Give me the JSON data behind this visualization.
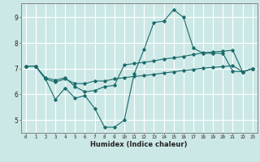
{
  "xlabel": "Humidex (Indice chaleur)",
  "background_color": "#cce8e6",
  "grid_color": "#ffffff",
  "line_color": "#1a6b6b",
  "xlim": [
    -0.5,
    23.5
  ],
  "ylim": [
    4.5,
    9.55
  ],
  "yticks": [
    5,
    6,
    7,
    8,
    9
  ],
  "xticks": [
    0,
    1,
    2,
    3,
    4,
    5,
    6,
    7,
    8,
    9,
    10,
    11,
    12,
    13,
    14,
    15,
    16,
    17,
    18,
    19,
    20,
    21,
    22,
    23
  ],
  "line1_x": [
    0,
    1,
    2,
    3,
    4,
    5,
    6,
    7,
    8,
    9,
    10,
    11,
    12,
    13,
    14,
    15,
    16,
    17,
    18,
    19,
    20,
    21,
    22,
    23
  ],
  "line1_y": [
    7.1,
    7.1,
    6.6,
    5.8,
    6.25,
    5.85,
    5.95,
    5.45,
    4.72,
    4.72,
    5.0,
    6.8,
    7.75,
    8.8,
    8.85,
    9.3,
    9.0,
    7.8,
    7.6,
    7.6,
    7.6,
    6.9,
    6.88,
    7.0
  ],
  "line2_x": [
    0,
    1,
    2,
    3,
    4,
    5,
    6,
    7,
    8,
    9,
    10,
    11,
    12,
    13,
    14,
    15,
    16,
    17,
    18,
    19,
    20,
    21,
    22,
    23
  ],
  "line2_y": [
    7.1,
    7.1,
    6.65,
    6.55,
    6.65,
    6.3,
    6.1,
    6.15,
    6.3,
    6.35,
    7.15,
    7.2,
    7.25,
    7.3,
    7.38,
    7.42,
    7.48,
    7.55,
    7.62,
    7.65,
    7.68,
    7.72,
    6.88,
    7.0
  ],
  "line3_x": [
    0,
    1,
    2,
    3,
    4,
    5,
    6,
    7,
    8,
    9,
    10,
    11,
    12,
    13,
    14,
    15,
    16,
    17,
    18,
    19,
    20,
    21,
    22,
    23
  ],
  "line3_y": [
    7.1,
    7.1,
    6.6,
    6.48,
    6.6,
    6.42,
    6.42,
    6.52,
    6.52,
    6.6,
    6.65,
    6.7,
    6.73,
    6.78,
    6.83,
    6.88,
    6.93,
    6.97,
    7.02,
    7.05,
    7.08,
    7.12,
    6.88,
    7.0
  ]
}
